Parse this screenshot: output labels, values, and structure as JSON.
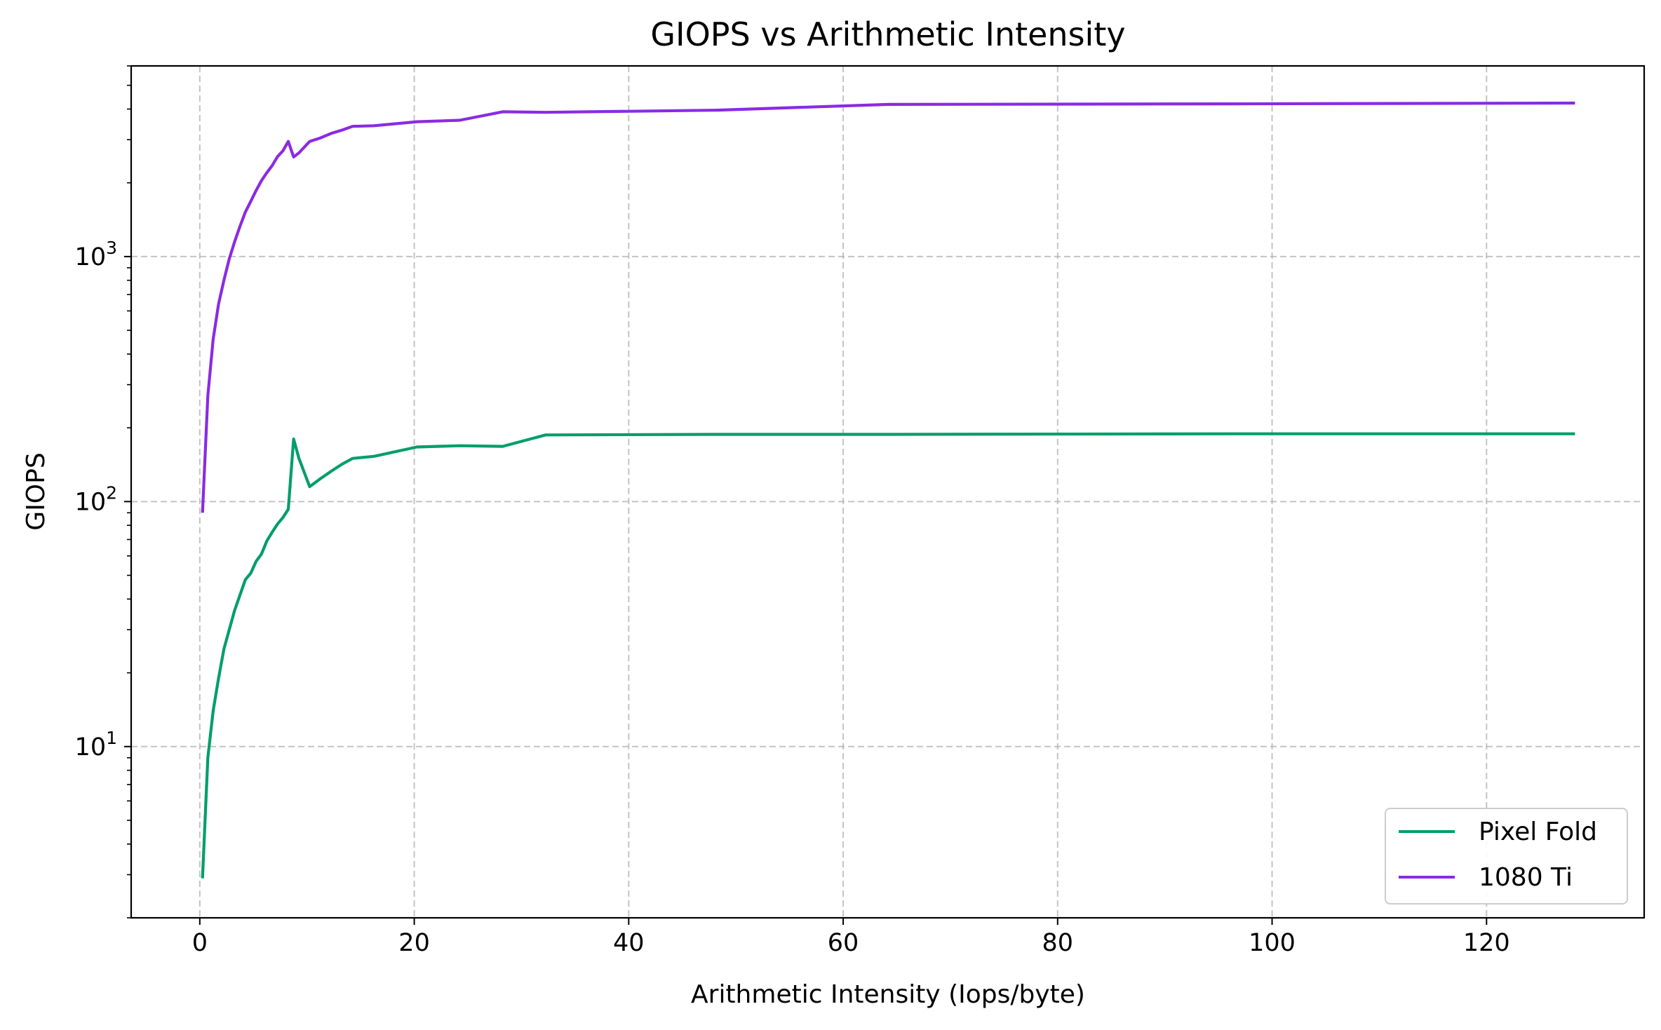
{
  "chart_data": {
    "type": "line",
    "title": "GIOPS vs Arithmetic Intensity",
    "xlabel": "Arithmetic Intensity (Iops/byte)",
    "ylabel": "GIOPS",
    "xlim": [
      -6.4,
      134.7
    ],
    "ylim": [
      2,
      6000
    ],
    "yscale": "log",
    "xticks": [
      0,
      20,
      40,
      60,
      80,
      100,
      120
    ],
    "xtick_labels": [
      "0",
      "20",
      "40",
      "60",
      "80",
      "100",
      "120"
    ],
    "yticks": [
      10,
      100,
      1000
    ],
    "ytick_labels": [
      {
        "base": "10",
        "exp": "1"
      },
      {
        "base": "10",
        "exp": "2"
      },
      {
        "base": "10",
        "exp": "3"
      }
    ],
    "grid": true,
    "legend_position": "lower right",
    "series": [
      {
        "name": "Pixel Fold",
        "color": "#009e6a",
        "x": [
          0.25,
          0.75,
          1.25,
          1.75,
          2.25,
          3.25,
          4.25,
          4.75,
          5.25,
          5.75,
          6.25,
          6.75,
          7.25,
          7.75,
          8.25,
          8.75,
          9.25,
          10.25,
          11.25,
          12.25,
          13.25,
          14.25,
          16.25,
          20.25,
          24.25,
          28.25,
          32.25,
          48.25,
          64.25,
          96.25,
          128.25
        ],
        "y": [
          2.9,
          9,
          14,
          19,
          25,
          36,
          48,
          51,
          57,
          61,
          69,
          75,
          81,
          86,
          93,
          180,
          150,
          115,
          124,
          133,
          142,
          150,
          153,
          167,
          169,
          168,
          187,
          188,
          188,
          189,
          189
        ]
      },
      {
        "name": "1080 Ti",
        "color": "#8a2be2",
        "x": [
          0.25,
          0.75,
          1.25,
          1.75,
          2.25,
          2.75,
          3.25,
          3.75,
          4.25,
          4.75,
          5.25,
          5.75,
          6.25,
          6.75,
          7.25,
          7.75,
          8.25,
          8.75,
          9.25,
          10.25,
          11.25,
          12.25,
          13.25,
          14.25,
          16.25,
          20.25,
          24.25,
          28.25,
          32.25,
          48.25,
          64.25,
          96.25,
          128.25
        ],
        "y": [
          90,
          270,
          460,
          640,
          800,
          980,
          1150,
          1330,
          1520,
          1680,
          1860,
          2040,
          2200,
          2350,
          2560,
          2700,
          2950,
          2550,
          2650,
          2950,
          3050,
          3180,
          3280,
          3400,
          3420,
          3550,
          3600,
          3900,
          3880,
          3960,
          4180,
          4200,
          4230
        ]
      }
    ]
  }
}
